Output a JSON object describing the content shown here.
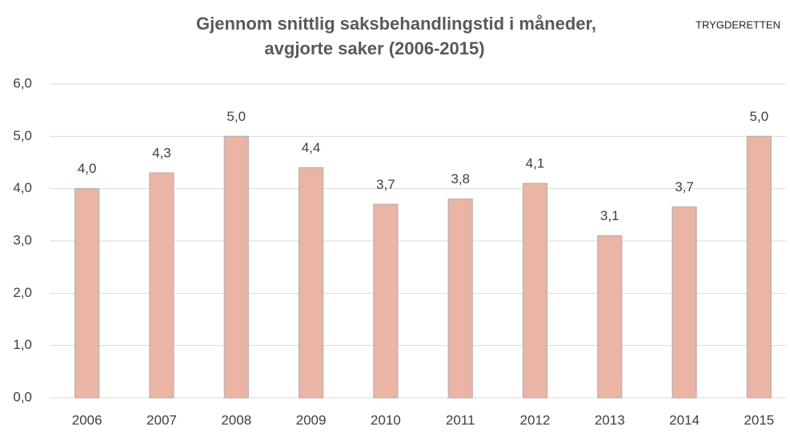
{
  "chart_data": {
    "type": "bar",
    "title": [
      "Gjennom snittlig saksbehandlingstid i måneder,",
      "avgjorte saker (2006-2015)"
    ],
    "source": "TRYGDERETTEN",
    "categories": [
      "2006",
      "2007",
      "2008",
      "2009",
      "2010",
      "2011",
      "2012",
      "2013",
      "2014",
      "2015"
    ],
    "values": [
      4.0,
      4.3,
      5.0,
      4.4,
      3.7,
      3.8,
      4.1,
      3.1,
      3.65,
      5.0
    ],
    "value_labels": [
      "4,0",
      "4,3",
      "5,0",
      "4,4",
      "3,7",
      "3,8",
      "4,1",
      "3,1",
      "3,7",
      "5,0"
    ],
    "color": "#eab5a5",
    "ylim": [
      0,
      6
    ],
    "yticks": [
      {
        "value": 0,
        "label": "0,0"
      },
      {
        "value": 1,
        "label": "1,0"
      },
      {
        "value": 2,
        "label": "2,0"
      },
      {
        "value": 3,
        "label": "3,0"
      },
      {
        "value": 4,
        "label": "4,0"
      },
      {
        "value": 5,
        "label": "5,0"
      },
      {
        "value": 6,
        "label": "6,0"
      }
    ],
    "grid": true
  }
}
